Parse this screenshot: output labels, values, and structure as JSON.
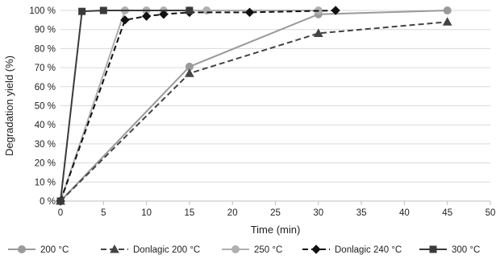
{
  "chart_data": {
    "type": "line",
    "title": "",
    "xlabel": "Time (min)",
    "ylabel": "Degradation yield (%)",
    "xlim": [
      0,
      50
    ],
    "ylim": [
      0,
      100
    ],
    "x_ticks": [
      "0",
      "5",
      "10",
      "15",
      "20",
      "25",
      "30",
      "35",
      "40",
      "45",
      "50"
    ],
    "y_ticks": [
      "0 %",
      "10 %",
      "20 %",
      "30 %",
      "40 %",
      "50 %",
      "60 %",
      "70 %",
      "80 %",
      "90 %",
      "100 %"
    ],
    "grid": "horizontal",
    "legend_position": "bottom",
    "series": [
      {
        "name": "200 °C",
        "color": "#9a9a9a",
        "dash": "solid",
        "marker": "circle",
        "x": [
          0,
          15,
          30,
          45
        ],
        "y": [
          0,
          70.5,
          98,
          100
        ]
      },
      {
        "name": "Donlagic 200 °C",
        "color": "#444444",
        "dash": "dashed",
        "marker": "triangle",
        "x": [
          0,
          15,
          30,
          45
        ],
        "y": [
          0,
          67,
          88,
          94
        ]
      },
      {
        "name": "250 °C",
        "color": "#b0b0b0",
        "dash": "solid",
        "marker": "circle",
        "x": [
          0,
          7.5,
          10,
          12,
          15,
          17,
          30
        ],
        "y": [
          0,
          100,
          100,
          100,
          100,
          100,
          100
        ]
      },
      {
        "name": "Donlagic 240 °C",
        "color": "#111111",
        "dash": "dashed",
        "marker": "diamond",
        "x": [
          0,
          7.5,
          10,
          12,
          15,
          22,
          32
        ],
        "y": [
          0,
          95,
          97,
          98,
          99,
          99,
          100
        ]
      },
      {
        "name": "300 °C",
        "color": "#3a3a3a",
        "dash": "solid",
        "marker": "square",
        "x": [
          0,
          2.5,
          5,
          15
        ],
        "y": [
          0,
          99.5,
          100,
          100
        ]
      }
    ]
  }
}
